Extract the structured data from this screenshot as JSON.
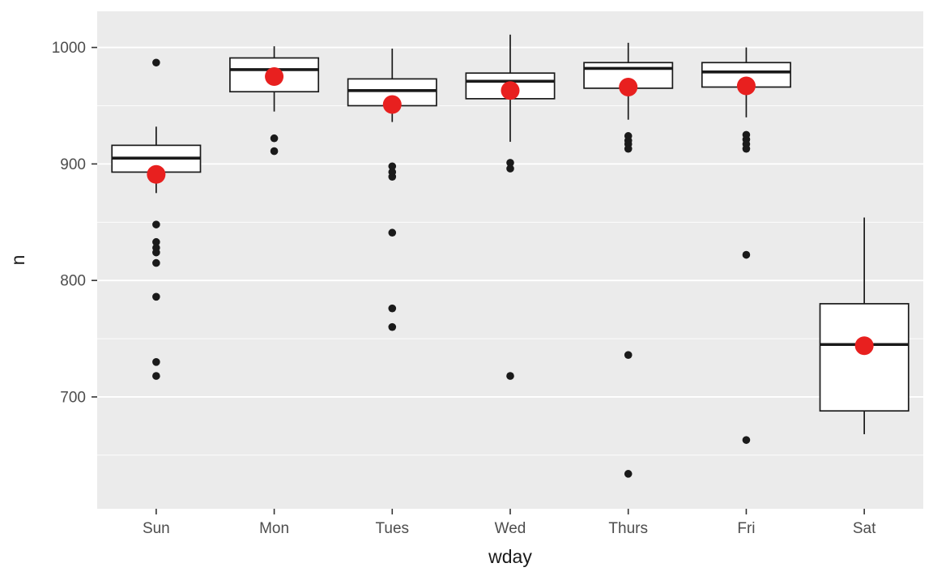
{
  "chart_data": {
    "type": "boxplot",
    "title": "",
    "xlabel": "wday",
    "ylabel": "n",
    "categories": [
      "Sun",
      "Mon",
      "Tues",
      "Wed",
      "Thurs",
      "Fri",
      "Sat"
    ],
    "ylim": [
      604,
      1031
    ],
    "yticks_major": [
      700,
      800,
      900,
      1000
    ],
    "yticks_minor": [
      650,
      750,
      850,
      950
    ],
    "grid": "on",
    "legend": "none",
    "series": [
      {
        "category": "Sun",
        "whisker_low": 875,
        "q1": 893,
        "median": 905,
        "q3": 916,
        "whisker_high": 932,
        "mean": 891,
        "outliers": [
          987,
          848,
          833,
          828,
          824,
          815,
          786,
          730,
          718
        ]
      },
      {
        "category": "Mon",
        "whisker_low": 945,
        "q1": 962,
        "median": 981,
        "q3": 991,
        "whisker_high": 1001,
        "mean": 975,
        "outliers": [
          922,
          911
        ]
      },
      {
        "category": "Tues",
        "whisker_low": 936,
        "q1": 950,
        "median": 963,
        "q3": 973,
        "whisker_high": 999,
        "mean": 951,
        "outliers": [
          898,
          893,
          889,
          841,
          776,
          760
        ]
      },
      {
        "category": "Wed",
        "whisker_low": 919,
        "q1": 956,
        "median": 971,
        "q3": 978,
        "whisker_high": 1011,
        "mean": 963,
        "outliers": [
          901,
          896,
          718
        ]
      },
      {
        "category": "Thurs",
        "whisker_low": 938,
        "q1": 965,
        "median": 982,
        "q3": 987,
        "whisker_high": 1004,
        "mean": 966,
        "outliers": [
          924,
          920,
          917,
          913,
          736,
          634
        ]
      },
      {
        "category": "Fri",
        "whisker_low": 940,
        "q1": 966,
        "median": 979,
        "q3": 987,
        "whisker_high": 1000,
        "mean": 967,
        "outliers": [
          925,
          921,
          917,
          913,
          822,
          663
        ]
      },
      {
        "category": "Sat",
        "whisker_low": 668,
        "q1": 688,
        "median": 745,
        "q3": 780,
        "whisker_high": 854,
        "mean": 744,
        "outliers": []
      }
    ],
    "colors": {
      "panel_bg": "#ebebeb",
      "grid": "#ffffff",
      "box_fill": "#ffffff",
      "box_stroke": "#1a1a1a",
      "outlier": "#1a1a1a",
      "mean_point": "#e8201f",
      "tick_mark": "#333333"
    }
  }
}
